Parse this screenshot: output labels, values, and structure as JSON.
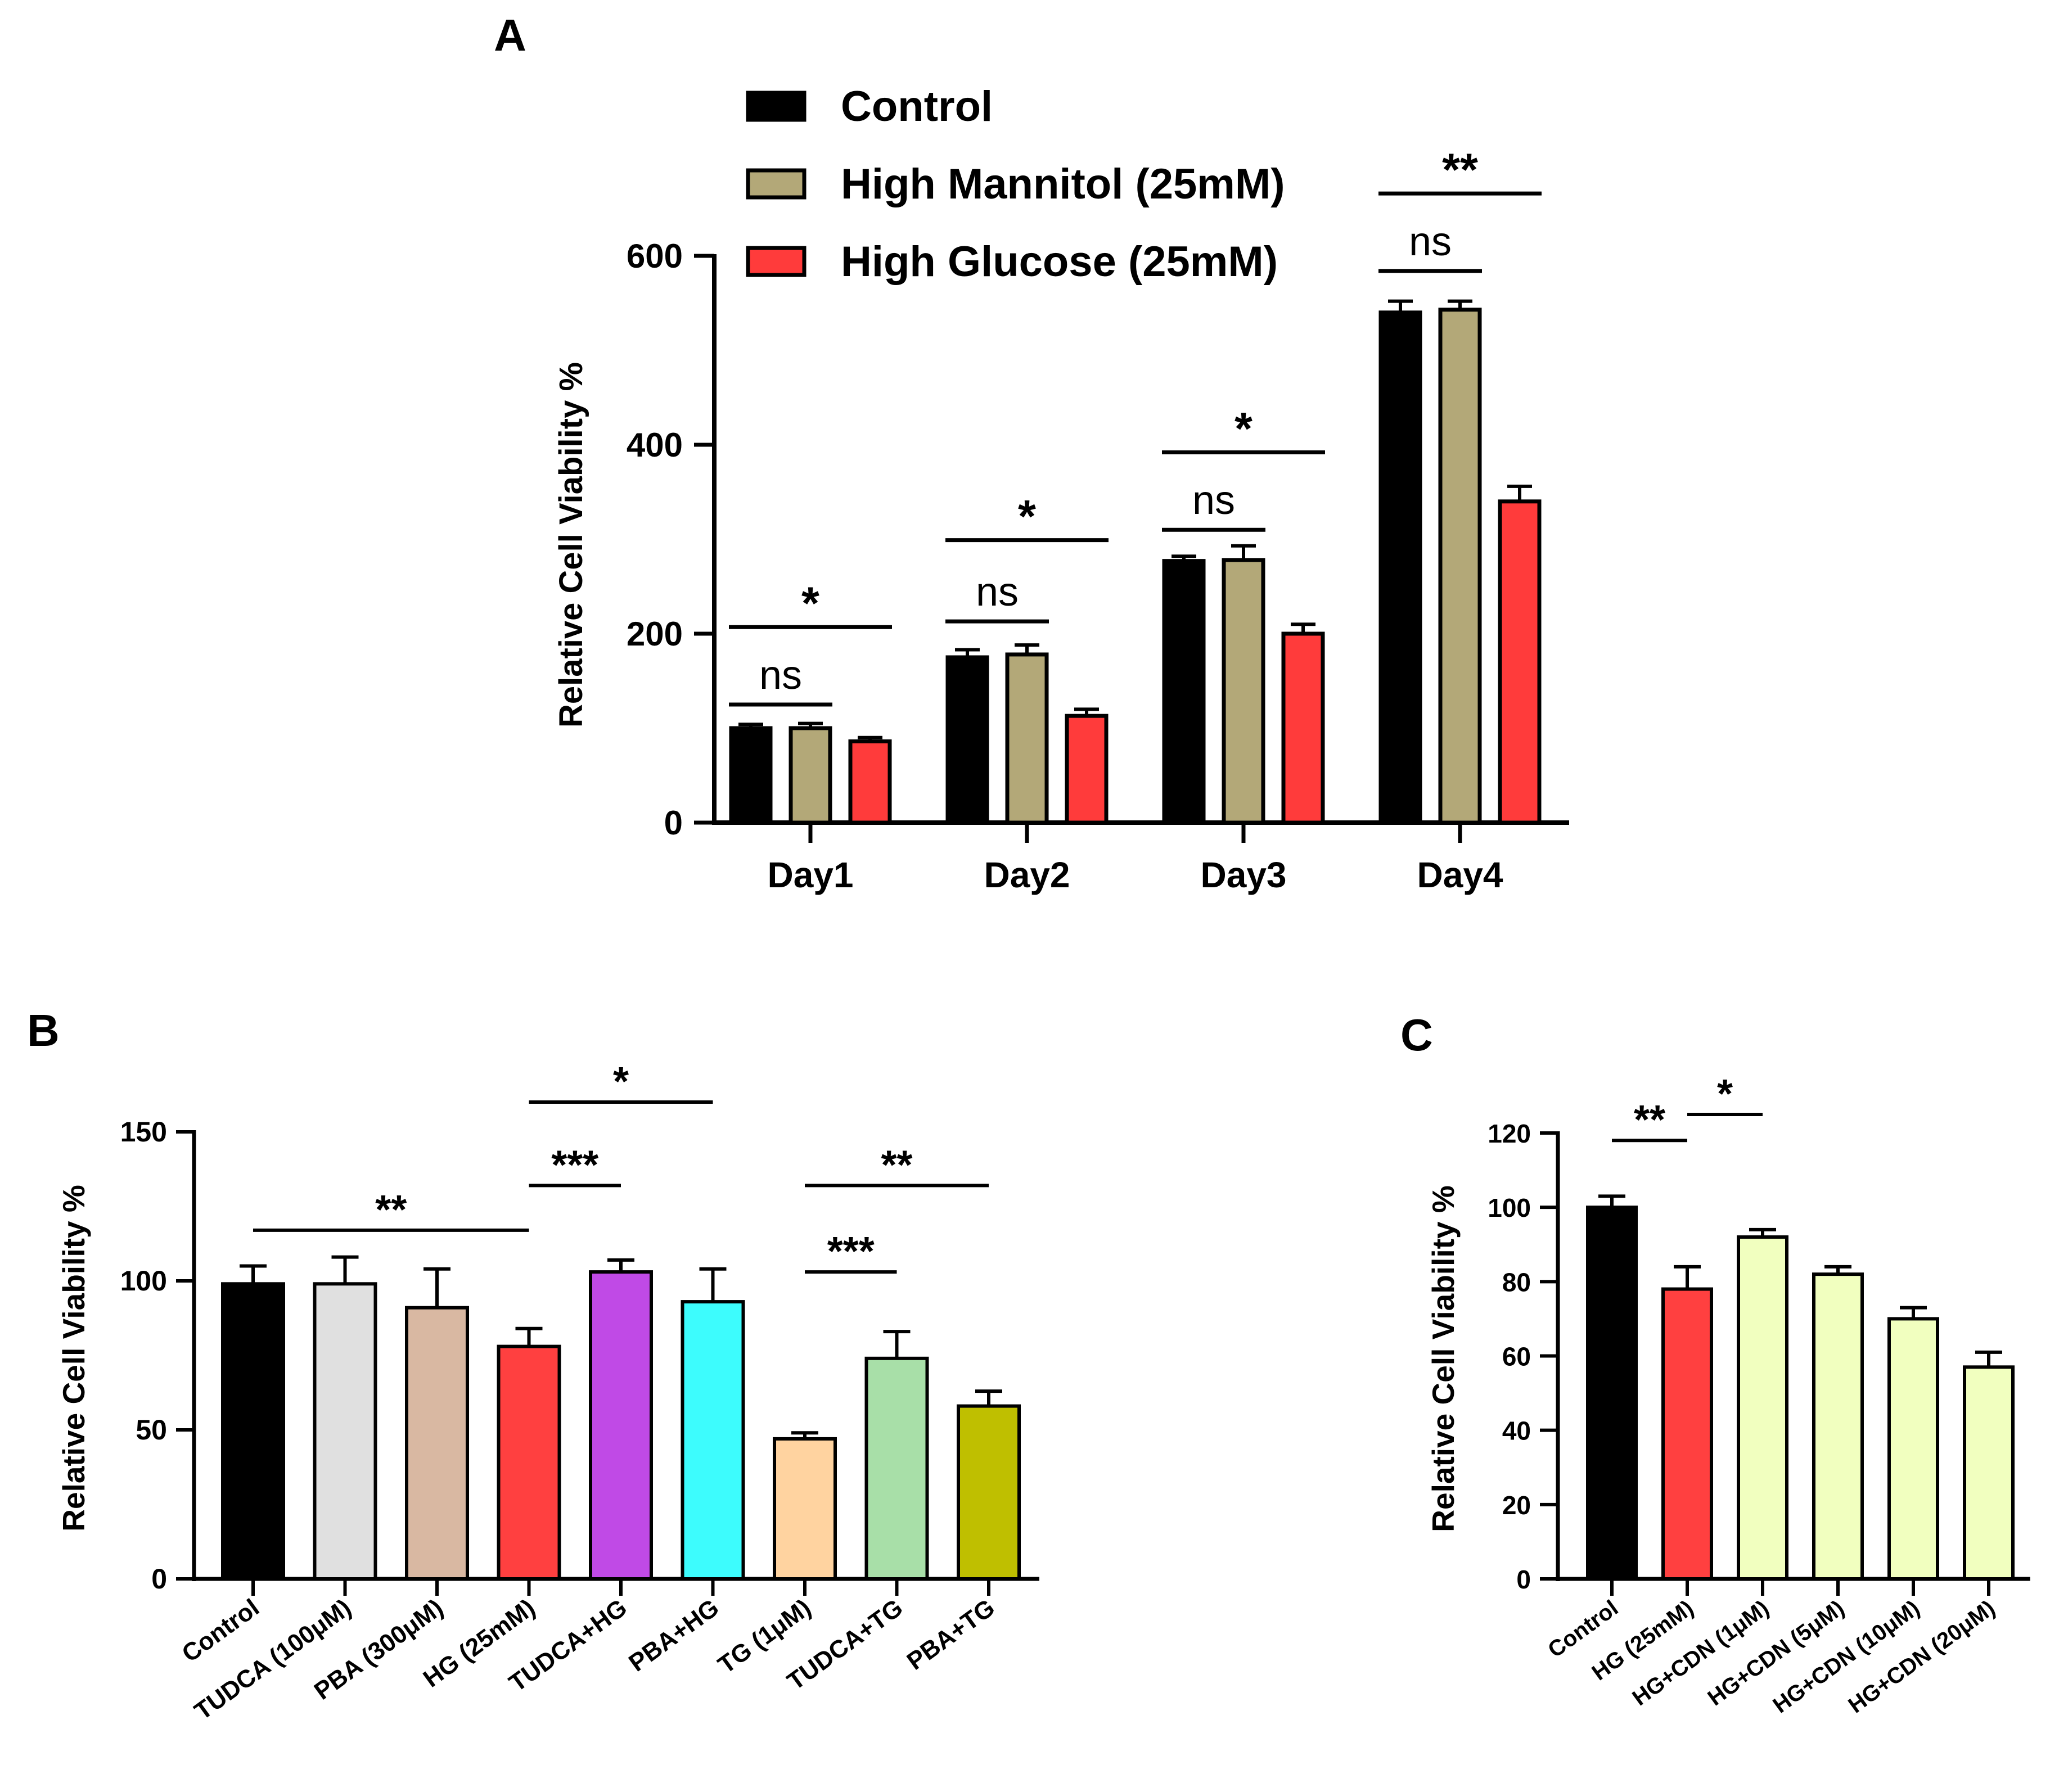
{
  "colors": {
    "axis": "#000000"
  },
  "chart_data": [
    {
      "panel_label": "A",
      "type": "bar",
      "categories": [
        "Day1",
        "Day2",
        "Day3",
        "Day4"
      ],
      "ylabel": "Relative Cell Viability %",
      "xlabel": "",
      "ylim": [
        0,
        600
      ],
      "yticks": [
        "0",
        "200",
        "400",
        "600"
      ],
      "grid": false,
      "legend_position": "top",
      "series": [
        {
          "name": "Control",
          "color": "#000000",
          "values": [
            100,
            175,
            277,
            540
          ],
          "errors": [
            4,
            8,
            5,
            12
          ]
        },
        {
          "name": "High Mannitol (25mM)",
          "color": "#b3a878",
          "values": [
            100,
            178,
            278,
            543
          ],
          "errors": [
            5,
            10,
            15,
            9
          ]
        },
        {
          "name": "High Glucose (25mM)",
          "color": "#ff3b3b",
          "values": [
            86,
            113,
            200,
            340
          ],
          "errors": [
            4,
            7,
            10,
            16
          ]
        }
      ],
      "annotations": [
        {
          "label": "ns",
          "from": [
            0,
            0
          ],
          "to": [
            0,
            1
          ],
          "level": 125,
          "weight": "normal"
        },
        {
          "label": "*",
          "from": [
            0,
            0
          ],
          "to": [
            0,
            2
          ],
          "level": 207,
          "weight": "bold"
        },
        {
          "label": "ns",
          "from": [
            1,
            0
          ],
          "to": [
            1,
            1
          ],
          "level": 213,
          "weight": "normal"
        },
        {
          "label": "*",
          "from": [
            1,
            0
          ],
          "to": [
            1,
            2
          ],
          "level": 299,
          "weight": "bold"
        },
        {
          "label": "ns",
          "from": [
            2,
            0
          ],
          "to": [
            2,
            1
          ],
          "level": 310,
          "weight": "normal"
        },
        {
          "label": "*",
          "from": [
            2,
            0
          ],
          "to": [
            2,
            2
          ],
          "level": 392,
          "weight": "bold"
        },
        {
          "label": "ns",
          "from": [
            3,
            0
          ],
          "to": [
            3,
            1
          ],
          "level": 584,
          "weight": "normal"
        },
        {
          "label": "**",
          "from": [
            3,
            0
          ],
          "to": [
            3,
            2
          ],
          "level": 666,
          "weight": "bold"
        }
      ]
    },
    {
      "panel_label": "B",
      "type": "bar",
      "categories": [
        "Control",
        "TUDCA (100μM)",
        "PBA (300μM)",
        "HG (25mM)",
        "TUDCA+HG",
        "PBA+HG",
        "TG (1μM)",
        "TUDCA+TG",
        "PBA+TG"
      ],
      "ylabel": "Relative Cell Viability %",
      "xlabel": "",
      "ylim": [
        0,
        150
      ],
      "yticks": [
        "0",
        "50",
        "100",
        "150"
      ],
      "grid": false,
      "values": [
        99,
        99,
        91,
        78,
        103,
        93,
        47,
        74,
        58
      ],
      "errors": [
        6,
        9,
        13,
        6,
        4,
        11,
        2,
        9,
        5
      ],
      "colors": [
        "#000000",
        "#e0e0e0",
        "#d9b8a2",
        "#ff4040",
        "#c04ae6",
        "#3dfcfd",
        "#ffd3a0",
        "#a8dfa8",
        "#bfbf00"
      ],
      "annotations": [
        {
          "label": "**",
          "from": 0,
          "to": 3,
          "level": 117
        },
        {
          "label": "***",
          "from": 3,
          "to": 4,
          "level": 132
        },
        {
          "label": "*",
          "from": 3,
          "to": 5,
          "level": 160
        },
        {
          "label": "***",
          "from": 6,
          "to": 7,
          "level": 103
        },
        {
          "label": "**",
          "from": 6,
          "to": 8,
          "level": 132
        }
      ]
    },
    {
      "panel_label": "C",
      "type": "bar",
      "categories": [
        "Control",
        "HG (25mM)",
        "HG+CDN (1μM)",
        "HG+CDN (5μM)",
        "HG+CDN (10μM)",
        "HG+CDN (20μM)"
      ],
      "ylabel": "Relative Cell Viability %",
      "xlabel": "",
      "ylim": [
        0,
        120
      ],
      "yticks": [
        "0",
        "20",
        "40",
        "60",
        "80",
        "100",
        "120"
      ],
      "grid": false,
      "values": [
        100,
        78,
        92,
        82,
        70,
        57
      ],
      "errors": [
        3,
        6,
        2,
        2,
        3,
        4
      ],
      "colors": [
        "#000000",
        "#ff4040",
        "#f1ffbf",
        "#f1ffbf",
        "#f1ffbf",
        "#f1ffbf"
      ],
      "annotations": [
        {
          "label": "**",
          "from": 0,
          "to": 1,
          "level": 118
        },
        {
          "label": "*",
          "from": 1,
          "to": 2,
          "level": 125
        }
      ]
    }
  ]
}
